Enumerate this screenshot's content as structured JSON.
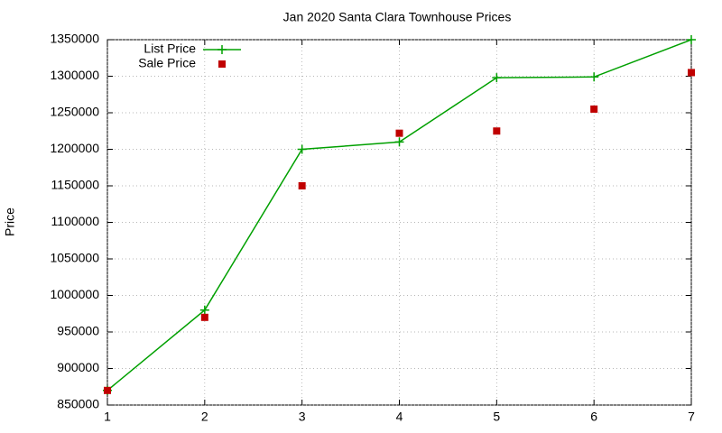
{
  "chart_data": {
    "type": "line",
    "title": "Jan 2020 Santa Clara Townhouse Prices",
    "ylabel": "Price",
    "x": [
      1,
      2,
      3,
      4,
      5,
      6,
      7
    ],
    "series": [
      {
        "name": "List Price",
        "color": "#00a000",
        "mode": "lines+markers",
        "marker": "plus",
        "values": [
          870000,
          980000,
          1200000,
          1210000,
          1298000,
          1299000,
          1350000
        ]
      },
      {
        "name": "Sale Price",
        "color": "#c00000",
        "mode": "markers",
        "marker": "square",
        "values": [
          870000,
          970000,
          1150000,
          1222000,
          1225000,
          1255000,
          1305000
        ]
      }
    ],
    "xlim": [
      1,
      7
    ],
    "xticks": [
      1,
      2,
      3,
      4,
      5,
      6,
      7
    ],
    "ylim": [
      850000,
      1350000
    ],
    "yticks": [
      850000,
      900000,
      950000,
      1000000,
      1050000,
      1100000,
      1150000,
      1200000,
      1250000,
      1300000,
      1350000
    ],
    "grid": true,
    "legend": "top-left"
  }
}
